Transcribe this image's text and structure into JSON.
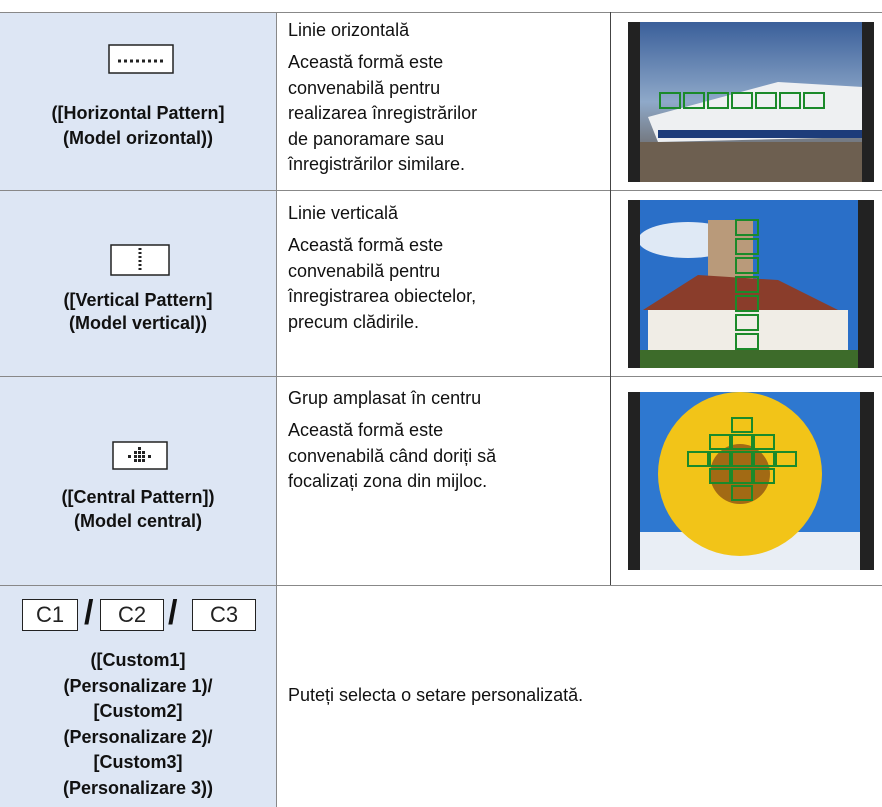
{
  "rows": [
    {
      "label": [
        "([Horizontal Pattern]",
        "(Model orizontal))"
      ],
      "title": "Linie orizontală",
      "description": [
        "Această formă este",
        "convenabilă pentru",
        "realizarea înregistrărilor",
        "de panoramare sau",
        "înregistrărilor similare."
      ]
    },
    {
      "label": [
        "([Vertical Pattern]",
        "(Model vertical))"
      ],
      "title": "Linie verticală",
      "description": [
        "Această formă este",
        "convenabilă pentru",
        "înregistrarea obiectelor,",
        "precum clădirile."
      ]
    },
    {
      "label": [
        "([Central Pattern])",
        "(Model central)"
      ],
      "title": "Grup amplasat în centru",
      "description": [
        "Această formă este",
        "convenabilă când doriți să",
        "focalizați zona din mijloc."
      ]
    },
    {
      "icons": [
        "C1",
        "C2",
        "C3"
      ],
      "separator": "/",
      "label": [
        "([Custom1]",
        "(Personalizare 1)/",
        "[Custom2]",
        "(Personalizare 2)/",
        "[Custom3]",
        "(Personalizare 3))"
      ],
      "description": "Puteți selecta o setare personalizată."
    }
  ]
}
